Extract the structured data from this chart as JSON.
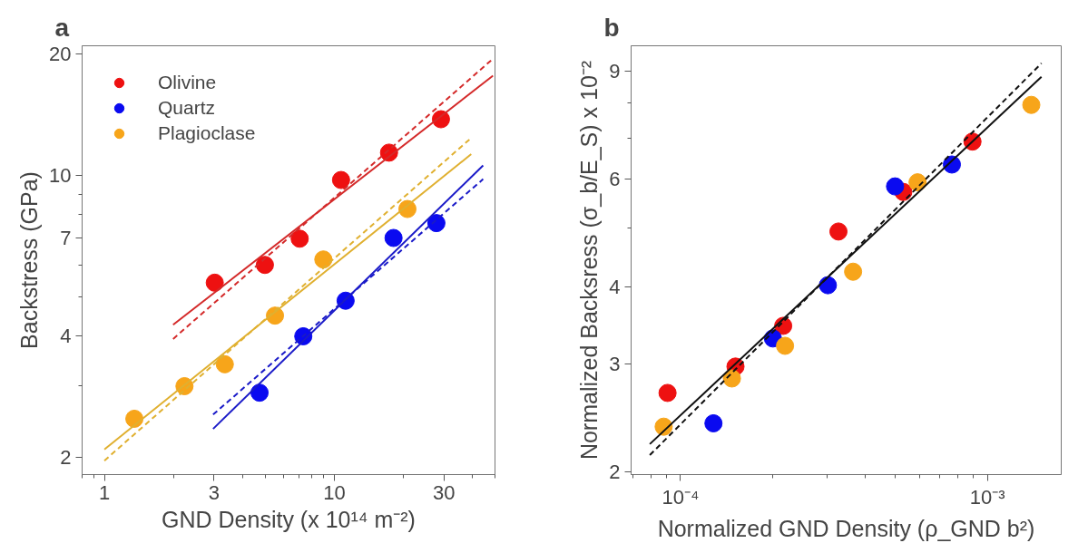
{
  "chart_data": [
    {
      "type": "scatter",
      "title": "a",
      "xlabel": "GND Density (x 10¹⁴ m⁻²)",
      "ylabel": "Backstress (GPa)",
      "log": "xy",
      "xlim": [
        0.8,
        50
      ],
      "ylim": [
        1.81,
        21
      ],
      "xticks": [
        1,
        3,
        10,
        30
      ],
      "yticks": [
        2,
        4,
        7,
        10,
        20
      ],
      "grid": false,
      "legend": "top left",
      "marker": "circle",
      "series": [
        {
          "name": "Olivine",
          "color": "#ee1111",
          "x": [
            3.02,
            4.99,
            7.07,
            10.7,
            17.3,
            29.1
          ],
          "values": [
            5.42,
            6.0,
            6.97,
            9.75,
            11.4,
            13.8
          ]
        },
        {
          "name": "Quartz",
          "color": "#0a0af0",
          "x": [
            4.73,
            7.33,
            11.2,
            18.1,
            27.8
          ],
          "values": [
            2.89,
            3.99,
            4.89,
            7.0,
            7.62
          ]
        },
        {
          "name": "Plagioclase",
          "color": "#f7a51a",
          "x": [
            1.35,
            2.23,
            3.34,
            5.52,
            8.96,
            20.8
          ],
          "values": [
            2.49,
            3.0,
            3.4,
            4.49,
            6.19,
            8.26
          ]
        },
        {
          "type": "line",
          "marker": "none",
          "line_style": "solid",
          "color": "#d42a2a",
          "x": [
            1.99,
            49
          ],
          "values": [
            4.26,
            17.7
          ]
        },
        {
          "type": "line",
          "marker": "none",
          "line_style": "dashed",
          "color": "#d42a2a",
          "x": [
            1.99,
            49
          ],
          "values": [
            3.93,
            19.5
          ]
        },
        {
          "type": "line",
          "marker": "none",
          "line_style": "solid",
          "color": "#e0b030",
          "x": [
            1.0,
            39.4
          ],
          "values": [
            2.09,
            11.3
          ]
        },
        {
          "type": "line",
          "marker": "none",
          "line_style": "dashed",
          "color": "#e0b030",
          "x": [
            1.0,
            39.4
          ],
          "values": [
            1.96,
            12.4
          ]
        },
        {
          "type": "line",
          "marker": "none",
          "line_style": "solid",
          "color": "#1a1ac8",
          "x": [
            2.97,
            44.4
          ],
          "values": [
            2.35,
            10.6
          ]
        },
        {
          "type": "line",
          "marker": "none",
          "line_style": "dashed",
          "color": "#1a1ac8",
          "x": [
            2.97,
            44.4
          ],
          "values": [
            2.55,
            9.8
          ]
        }
      ]
    },
    {
      "type": "scatter",
      "title": "b",
      "xlabel": "Normalized GND Density (ρ_GND b²)",
      "ylabel": "Normalized Backsress (σ_b/E_S) x 10⁻²",
      "log": "xy",
      "xlim": [
        6.9e-05,
        0.00174
      ],
      "ylim": [
        1.98,
        9.9
      ],
      "xticks": [
        {
          "value": 0.0001,
          "label": "10⁻⁴"
        },
        {
          "value": 0.001,
          "label": "10⁻³"
        }
      ],
      "yticks": [
        2,
        3,
        4,
        6,
        9
      ],
      "grid": false,
      "marker": "circle",
      "series": [
        {
          "color": "#ee1111",
          "x": [
            9.07e-05,
            0.000151,
            0.000216,
            0.000327,
            0.000532,
            0.000894
          ],
          "values": [
            2.69,
            2.97,
            3.46,
            4.93,
            5.72,
            6.91
          ]
        },
        {
          "color": "#0a0af0",
          "x": [
            0.000128,
            0.0002,
            0.000302,
            0.0005,
            0.000766
          ],
          "values": [
            2.4,
            3.3,
            4.03,
            5.84,
            6.34
          ]
        },
        {
          "color": "#f7a51a",
          "x": [
            8.81e-05,
            0.000147,
            0.000219,
            0.000365,
            0.000592,
            0.00139
          ],
          "values": [
            2.37,
            2.84,
            3.21,
            4.24,
            5.93,
            7.93
          ]
        },
        {
          "type": "line",
          "marker": "none",
          "line_style": "solid",
          "color": "#111111",
          "x": [
            7.94e-05,
            0.0015
          ],
          "values": [
            2.22,
            8.81
          ]
        },
        {
          "type": "line",
          "marker": "none",
          "line_style": "dashed",
          "color": "#111111",
          "x": [
            7.94e-05,
            0.0015
          ],
          "values": [
            2.13,
            9.27
          ]
        }
      ]
    }
  ]
}
